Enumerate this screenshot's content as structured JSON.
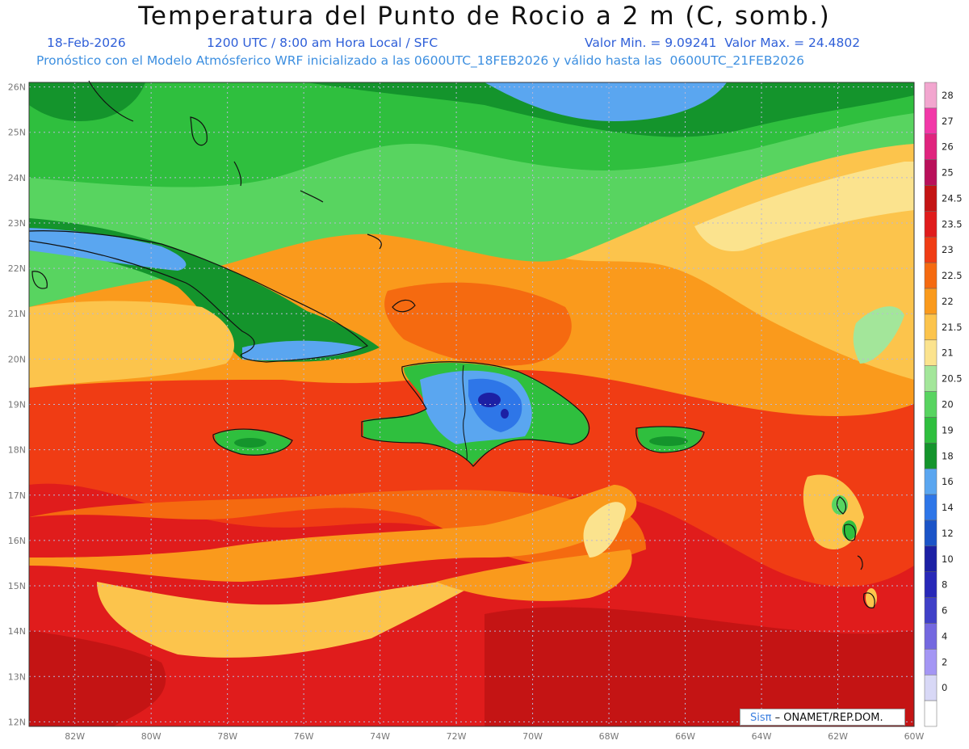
{
  "title": "Temperatura del Punto de Rocio a 2 m (C, somb.)",
  "subtitle": {
    "date": "18-Feb-2026",
    "time": "1200 UTC / 8:00 am Hora Local / SFC",
    "stats": "Valor Min. = 9.09241  Valor Max. = 24.4802",
    "model": "Pronóstico con el Modelo Atmósferico WRF inicializado a las 0600UTC_18FEB2026 y válido hasta las  0600UTC_21FEB2026"
  },
  "map": {
    "lat_labels": [
      "26N",
      "25N",
      "24N",
      "23N",
      "22N",
      "21N",
      "20N",
      "19N",
      "18N",
      "17N",
      "16N",
      "15N",
      "14N",
      "13N",
      "12N"
    ],
    "lon_labels": [
      "82W",
      "80W",
      "78W",
      "76W",
      "74W",
      "72W",
      "70W",
      "68W",
      "66W",
      "64W",
      "62W",
      "60W"
    ],
    "lat_values": [
      26,
      25,
      24,
      23,
      22,
      21,
      20,
      19,
      18,
      17,
      16,
      15,
      14,
      13,
      12
    ],
    "lon_values": [
      -82,
      -80,
      -78,
      -76,
      -74,
      -72,
      -70,
      -68,
      -66,
      -64,
      -62,
      -60
    ],
    "extent": {
      "lon_min": -83.2,
      "lon_max": -60,
      "lat_min": 11.9,
      "lat_max": 26.1
    }
  },
  "legend": {
    "levels": [
      {
        "label": "28",
        "color": "#f2a6cf"
      },
      {
        "label": "27",
        "color": "#f238a8"
      },
      {
        "label": "26",
        "color": "#e0247e"
      },
      {
        "label": "25",
        "color": "#b9105a"
      },
      {
        "label": "24.5",
        "color": "#c41414"
      },
      {
        "label": "23.5",
        "color": "#e01c1c"
      },
      {
        "label": "23",
        "color": "#f03c14"
      },
      {
        "label": "22.5",
        "color": "#f56a10"
      },
      {
        "label": "22",
        "color": "#fa9a1c"
      },
      {
        "label": "21.5",
        "color": "#fcc44c"
      },
      {
        "label": "21",
        "color": "#fbe38e"
      },
      {
        "label": "20.5",
        "color": "#a3e69a"
      },
      {
        "label": "20",
        "color": "#58d460"
      },
      {
        "label": "19",
        "color": "#2fbf3e"
      },
      {
        "label": "18",
        "color": "#14942c"
      },
      {
        "label": "16",
        "color": "#5aa6f0"
      },
      {
        "label": "14",
        "color": "#2e76e8"
      },
      {
        "label": "12",
        "color": "#1b54c8"
      },
      {
        "label": "10",
        "color": "#1c20a4"
      },
      {
        "label": "8",
        "color": "#2828b8"
      },
      {
        "label": "6",
        "color": "#4040c8"
      },
      {
        "label": "4",
        "color": "#7468e0"
      },
      {
        "label": "2",
        "color": "#a496f4"
      },
      {
        "label": "0",
        "color": "#d8d8f6"
      },
      {
        "label": "",
        "color": "#ffffff"
      }
    ]
  },
  "credit": {
    "brand": "Sisπ",
    "text": " – ONAMET/REP.DOM."
  }
}
